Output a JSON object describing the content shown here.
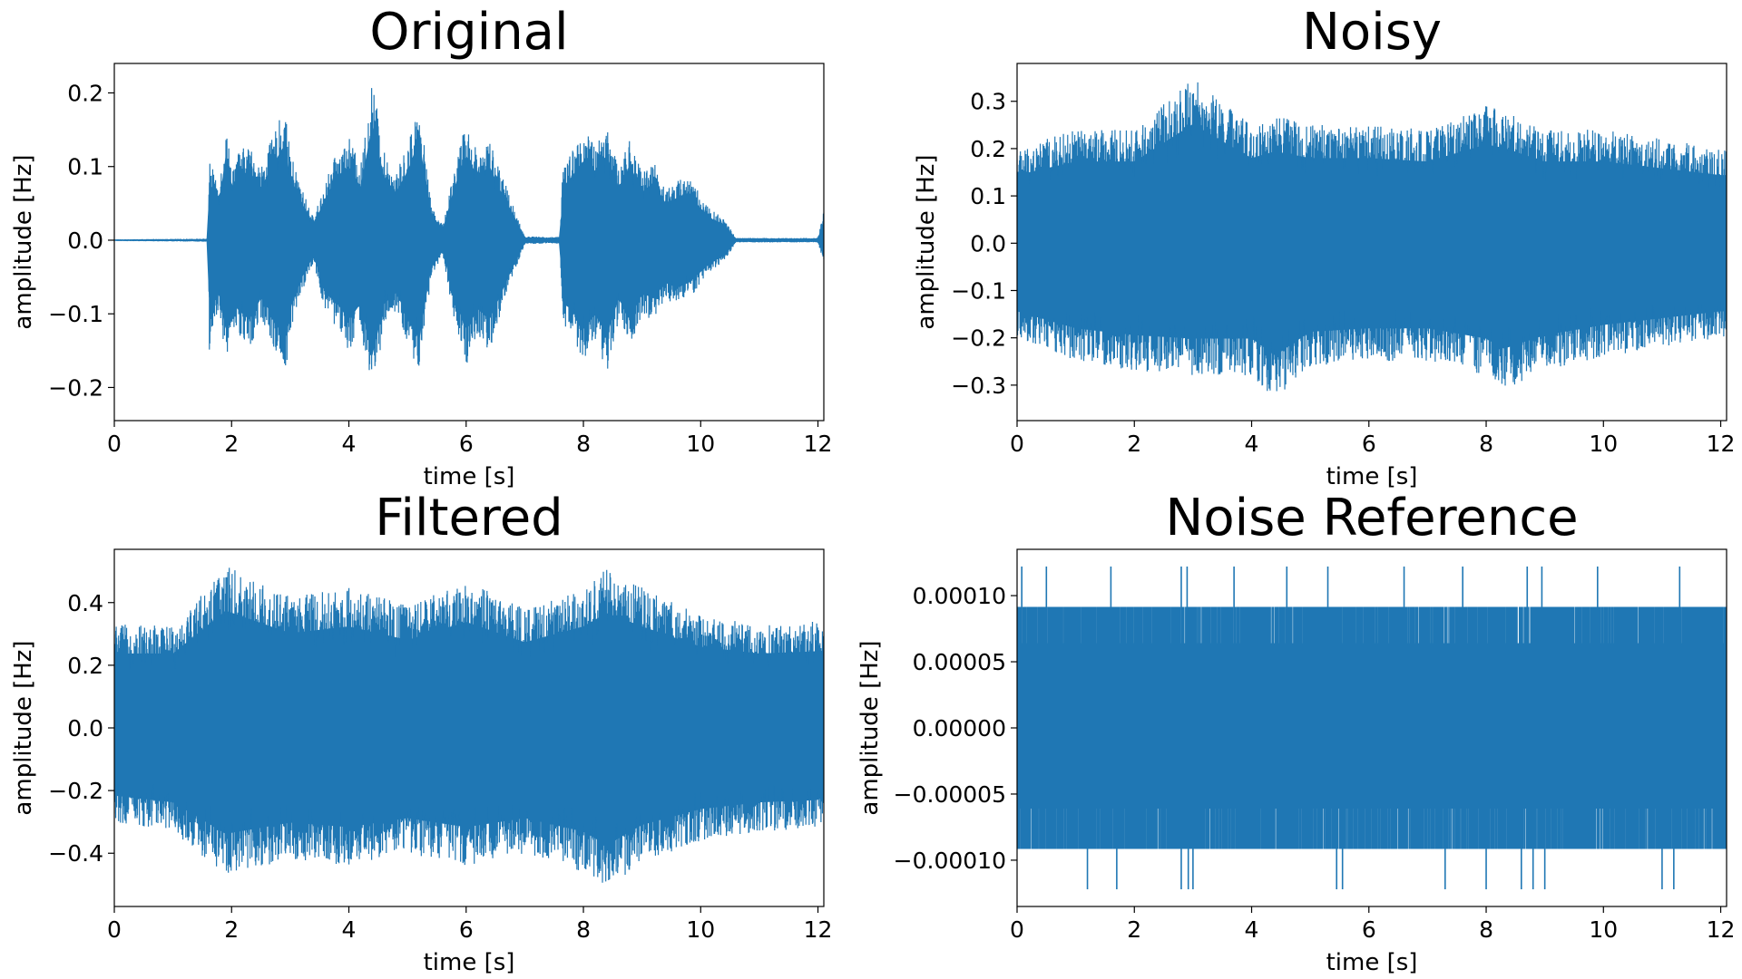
{
  "colors": {
    "series": "#1f77b4",
    "axes": "#000000",
    "background": "#ffffff"
  },
  "chart_data": [
    {
      "type": "line",
      "title": "Original",
      "xlabel": "time [s]",
      "ylabel": "amplitude [Hz]",
      "xlim": [
        0,
        12.1
      ],
      "ylim": [
        -0.245,
        0.24
      ],
      "xticks": [
        0,
        2,
        4,
        6,
        8,
        10,
        12
      ],
      "yticks": [
        -0.2,
        -0.1,
        0.0,
        0.1,
        0.2
      ],
      "yticklabels": [
        "−0.2",
        "−0.1",
        "0.0",
        "0.1",
        "0.2"
      ],
      "grid": false,
      "envelope": {
        "t": [
          0,
          1.6,
          1.62,
          1.65,
          1.8,
          1.9,
          2.0,
          2.1,
          2.3,
          2.5,
          2.7,
          2.9,
          3.0,
          3.2,
          3.4,
          3.6,
          3.8,
          4.0,
          4.2,
          4.4,
          4.6,
          4.8,
          5.0,
          5.2,
          5.4,
          5.6,
          5.8,
          6.0,
          6.2,
          6.4,
          6.6,
          6.8,
          7.0,
          7.2,
          7.4,
          7.6,
          7.65,
          7.8,
          8.0,
          8.2,
          8.4,
          8.6,
          8.8,
          9.0,
          9.2,
          9.4,
          9.6,
          9.8,
          10.0,
          10.2,
          10.4,
          10.6,
          10.8,
          11.0,
          11.5,
          12.0,
          12.1
        ],
        "upper": [
          0.001,
          0.002,
          0.12,
          0.1,
          0.08,
          0.16,
          0.1,
          0.12,
          0.13,
          0.1,
          0.14,
          0.18,
          0.12,
          0.07,
          0.03,
          0.08,
          0.12,
          0.14,
          0.1,
          0.22,
          0.12,
          0.09,
          0.13,
          0.19,
          0.05,
          0.02,
          0.1,
          0.16,
          0.12,
          0.14,
          0.09,
          0.05,
          0.005,
          0.005,
          0.004,
          0.005,
          0.1,
          0.12,
          0.15,
          0.13,
          0.16,
          0.1,
          0.14,
          0.09,
          0.11,
          0.07,
          0.08,
          0.09,
          0.06,
          0.04,
          0.03,
          0.003,
          0.003,
          0.003,
          0.003,
          0.003,
          0.04
        ],
        "lower": [
          -0.001,
          -0.002,
          -0.16,
          -0.12,
          -0.1,
          -0.17,
          -0.11,
          -0.13,
          -0.15,
          -0.11,
          -0.14,
          -0.19,
          -0.13,
          -0.07,
          -0.03,
          -0.1,
          -0.12,
          -0.15,
          -0.12,
          -0.22,
          -0.12,
          -0.1,
          -0.14,
          -0.19,
          -0.05,
          -0.02,
          -0.11,
          -0.17,
          -0.13,
          -0.15,
          -0.1,
          -0.05,
          -0.005,
          -0.005,
          -0.004,
          -0.005,
          -0.12,
          -0.13,
          -0.17,
          -0.14,
          -0.18,
          -0.11,
          -0.15,
          -0.1,
          -0.11,
          -0.08,
          -0.09,
          -0.08,
          -0.06,
          -0.04,
          -0.03,
          -0.003,
          -0.003,
          -0.003,
          -0.003,
          -0.003,
          -0.03
        ]
      }
    },
    {
      "type": "line",
      "title": "Noisy",
      "xlabel": "time [s]",
      "ylabel": "amplitude [Hz]",
      "xlim": [
        0,
        12.1
      ],
      "ylim": [
        -0.375,
        0.38
      ],
      "xticks": [
        0,
        2,
        4,
        6,
        8,
        10,
        12
      ],
      "yticks": [
        -0.3,
        -0.2,
        -0.1,
        0.0,
        0.1,
        0.2,
        0.3
      ],
      "yticklabels": [
        "−0.3",
        "−0.2",
        "−0.1",
        "0.0",
        "0.1",
        "0.2",
        "0.3"
      ],
      "grid": false,
      "envelope": {
        "t": [
          0,
          1,
          2,
          3,
          4,
          4.4,
          5,
          6,
          7,
          8,
          8.3,
          9,
          10,
          11,
          12,
          12.1
        ],
        "upper": [
          0.2,
          0.24,
          0.24,
          0.35,
          0.25,
          0.27,
          0.25,
          0.25,
          0.24,
          0.29,
          0.28,
          0.24,
          0.24,
          0.22,
          0.2,
          0.2
        ],
        "lower": [
          -0.2,
          -0.25,
          -0.27,
          -0.28,
          -0.28,
          -0.33,
          -0.26,
          -0.25,
          -0.25,
          -0.28,
          -0.31,
          -0.27,
          -0.24,
          -0.22,
          -0.2,
          -0.2
        ]
      }
    },
    {
      "type": "line",
      "title": "Filtered",
      "xlabel": "time [s]",
      "ylabel": "amplitude [Hz]",
      "xlim": [
        0,
        12.1
      ],
      "ylim": [
        -0.57,
        0.57
      ],
      "xticks": [
        0,
        2,
        4,
        6,
        8,
        10,
        12
      ],
      "yticks": [
        -0.4,
        -0.2,
        0.0,
        0.2,
        0.4
      ],
      "yticklabels": [
        "−0.4",
        "−0.2",
        "0.0",
        "0.2",
        "0.4"
      ],
      "grid": false,
      "envelope": {
        "t": [
          0,
          1,
          1.9,
          3,
          4,
          4.5,
          5,
          6,
          7,
          8,
          8.4,
          9,
          10,
          11,
          12,
          12.1
        ],
        "upper": [
          0.33,
          0.33,
          0.52,
          0.42,
          0.45,
          0.42,
          0.39,
          0.47,
          0.38,
          0.45,
          0.51,
          0.45,
          0.36,
          0.33,
          0.34,
          0.3
        ],
        "lower": [
          -0.3,
          -0.33,
          -0.47,
          -0.42,
          -0.44,
          -0.42,
          -0.4,
          -0.44,
          -0.4,
          -0.46,
          -0.52,
          -0.43,
          -0.36,
          -0.33,
          -0.32,
          -0.3
        ]
      }
    },
    {
      "type": "line",
      "title": "Noise Reference",
      "xlabel": "time [s]",
      "ylabel": "amplitude [Hz]",
      "xlim": [
        0,
        12.1
      ],
      "ylim": [
        -0.000135,
        0.000135
      ],
      "xticks": [
        0,
        2,
        4,
        6,
        8,
        10,
        12
      ],
      "yticks": [
        -0.0001,
        -5e-05,
        0.0,
        5e-05,
        0.0001
      ],
      "yticklabels": [
        "−0.00010",
        "−0.00005",
        "0.00000",
        "0.00005",
        "0.00010"
      ],
      "grid": false,
      "levels": {
        "band": [
          -9.15e-05,
          9.15e-05
        ],
        "inner": [
          -6.1e-05,
          6.4e-05
        ],
        "spike_high": 0.000122,
        "spike_low": -0.000122
      },
      "spikes_up_t": [
        0.08,
        0.5,
        1.6,
        2.8,
        2.9,
        3.7,
        4.6,
        5.3,
        6.6,
        7.6,
        8.7,
        8.95,
        9.9,
        11.3
      ],
      "spikes_down_t": [
        1.2,
        1.7,
        2.8,
        2.92,
        3.0,
        5.45,
        5.55,
        7.3,
        8.0,
        8.6,
        8.8,
        9.0,
        11.0,
        11.2
      ]
    }
  ]
}
